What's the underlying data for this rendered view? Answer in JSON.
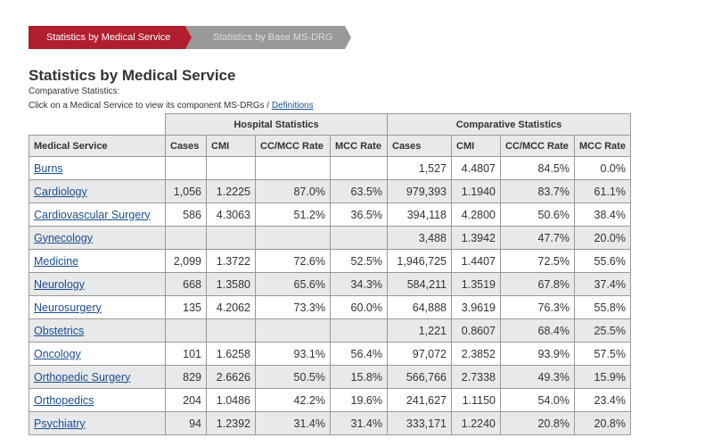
{
  "tabs": [
    {
      "label": "Statistics by Medical Service",
      "active": true
    },
    {
      "label": "Statistics by Base MS-DRG",
      "active": false
    }
  ],
  "title": "Statistics by Medical Service",
  "subtitle": "Comparative Statistics:",
  "instruction": "Click on a Medical Service to view its component MS-DRGs / ",
  "definitions_link": "Definitions",
  "table": {
    "group_headers": [
      "Hospital Statistics",
      "Comparative Statistics"
    ],
    "columns": [
      "Medical Service",
      "Cases",
      "CMI",
      "CC/MCC Rate",
      "MCC Rate",
      "Cases",
      "CMI",
      "CC/MCC Rate",
      "MCC Rate"
    ],
    "rows": [
      [
        "Burns",
        "",
        "",
        "",
        "",
        "1,527",
        "4.4807",
        "84.5%",
        "0.0%"
      ],
      [
        "Cardiology",
        "1,056",
        "1.2225",
        "87.0%",
        "63.5%",
        "979,393",
        "1.1940",
        "83.7%",
        "61.1%"
      ],
      [
        "Cardiovascular Surgery",
        "586",
        "4.3063",
        "51.2%",
        "36.5%",
        "394,118",
        "4.2800",
        "50.6%",
        "38.4%"
      ],
      [
        "Gynecology",
        "",
        "",
        "",
        "",
        "3,488",
        "1.3942",
        "47.7%",
        "20.0%"
      ],
      [
        "Medicine",
        "2,099",
        "1.3722",
        "72.6%",
        "52.5%",
        "1,946,725",
        "1.4407",
        "72.5%",
        "55.6%"
      ],
      [
        "Neurology",
        "668",
        "1.3580",
        "65.6%",
        "34.3%",
        "584,211",
        "1.3519",
        "67.8%",
        "37.4%"
      ],
      [
        "Neurosurgery",
        "135",
        "4.2062",
        "73.3%",
        "60.0%",
        "64,888",
        "3.9619",
        "76.3%",
        "55.8%"
      ],
      [
        "Obstetrics",
        "",
        "",
        "",
        "",
        "1,221",
        "0.8607",
        "68.4%",
        "25.5%"
      ],
      [
        "Oncology",
        "101",
        "1.6258",
        "93.1%",
        "56.4%",
        "97,072",
        "2.3852",
        "93.9%",
        "57.5%"
      ],
      [
        "Orthopedic Surgery",
        "829",
        "2.6626",
        "50.5%",
        "15.8%",
        "566,766",
        "2.7338",
        "49.3%",
        "15.9%"
      ],
      [
        "Orthopedics",
        "204",
        "1.0486",
        "42.2%",
        "19.6%",
        "241,627",
        "1.1150",
        "54.0%",
        "23.4%"
      ],
      [
        "Psychiatry",
        "94",
        "1.2392",
        "31.4%",
        "31.4%",
        "333,171",
        "1.2240",
        "20.8%",
        "20.8%"
      ]
    ]
  },
  "colors": {
    "active_tab": "#b01e2e",
    "inactive_tab": "#999999",
    "link": "#1a4f8f",
    "row_alt": "#e8e9eb"
  }
}
